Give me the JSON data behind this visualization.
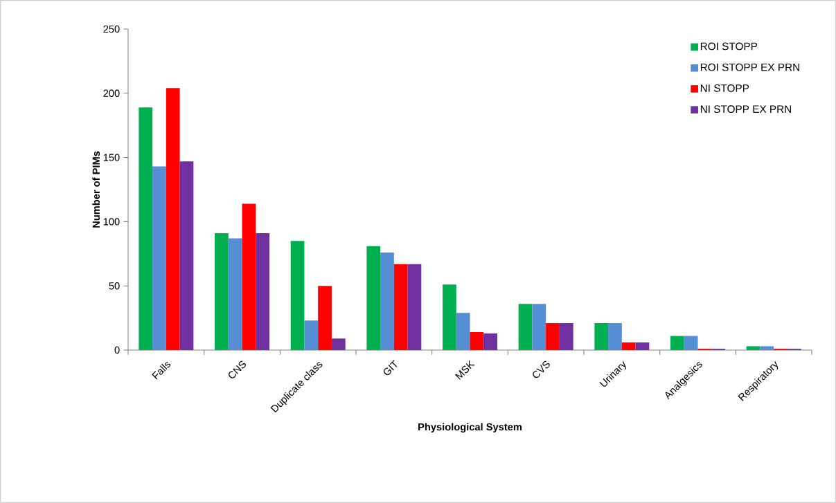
{
  "chart_data": {
    "type": "bar",
    "xlabel": "Physiological System",
    "ylabel": "Number of PIMs",
    "categories": [
      "Falls",
      "CNS",
      "Duplicate class",
      "GIT",
      "MSK",
      "CVS",
      "Urinary",
      "Analgesics",
      "Respiratory"
    ],
    "series": [
      {
        "name": "ROI STOPP",
        "color": "#00b050",
        "values": [
          189,
          91,
          85,
          81,
          51,
          36,
          21,
          11,
          3
        ]
      },
      {
        "name": "ROI STOPP EX PRN",
        "color": "#558ed5",
        "values": [
          143,
          87,
          23,
          76,
          29,
          36,
          21,
          11,
          3
        ]
      },
      {
        "name": "NI STOPP",
        "color": "#ff0000",
        "values": [
          204,
          114,
          50,
          67,
          14,
          21,
          6,
          1,
          1
        ]
      },
      {
        "name": "NI STOPP EX PRN",
        "color": "#7030a0",
        "values": [
          147,
          91,
          9,
          67,
          13,
          21,
          6,
          1,
          1
        ]
      }
    ],
    "ylim": [
      0,
      250
    ],
    "yticks": [
      0,
      50,
      100,
      150,
      200,
      250
    ],
    "grid": false,
    "legend": "top right"
  }
}
